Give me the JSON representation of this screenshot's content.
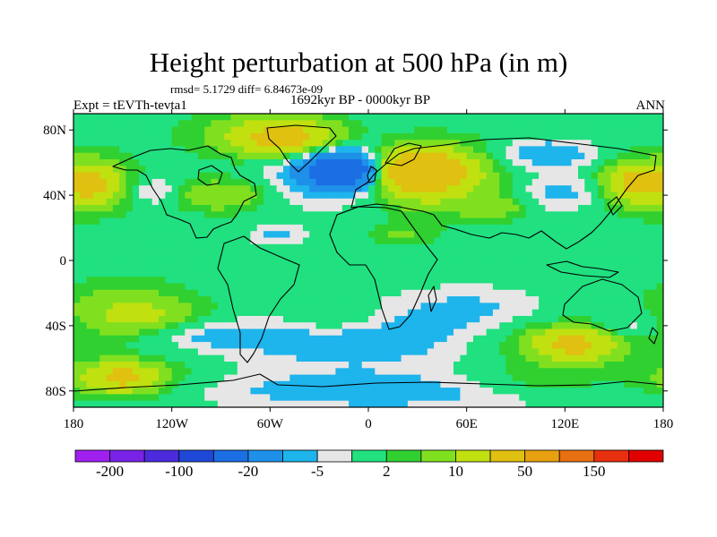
{
  "title": "Height perturbation at 500 hPa (in m)",
  "stats_line": "rmsd= 5.1729 diff= 6.84673e-09",
  "left_string": "Expt = tEVTh-tevta1",
  "center_string": "1692kyr BP - 0000kyr BP",
  "right_string": "ANN",
  "map": {
    "projection": "cylindrical equidistant",
    "lon_range": [
      -180,
      180
    ],
    "lat_range": [
      -90,
      90
    ],
    "lat_ticks": [
      "80N",
      "40N",
      "0",
      "40S",
      "80S"
    ],
    "lon_ticks": [
      "180",
      "120W",
      "60W",
      "0",
      "60E",
      "120E",
      "180"
    ],
    "coastlines": true
  },
  "colorbar": {
    "colors": [
      "#a020f0",
      "#7a22e6",
      "#4b2bdc",
      "#1f48d8",
      "#1c6ee4",
      "#1e90e8",
      "#1eb4ec",
      "#e6e6e6",
      "#20e080",
      "#30d030",
      "#80e020",
      "#c0e010",
      "#e0c010",
      "#e8a010",
      "#e87010",
      "#e83010",
      "#e00000"
    ],
    "labels": [
      "-200",
      "-100",
      "-20",
      "-5",
      "2",
      "10",
      "50",
      "150"
    ]
  },
  "chart_data": {
    "type": "heatmap",
    "title": "Height perturbation at 500 hPa (in m)",
    "subtitle": "1692kyr BP - 0000kyr BP",
    "variable": "500 hPa height perturbation",
    "units": "m",
    "contour_levels": [
      -200,
      -150,
      -100,
      -50,
      -20,
      -10,
      -5,
      -2,
      2,
      5,
      10,
      20,
      50,
      100,
      150,
      200
    ],
    "anomaly_features": [
      {
        "lon": 30,
        "lat": 55,
        "lon_radius": 25,
        "lat_radius": 12,
        "value": 40
      },
      {
        "lon": 40,
        "lat": 50,
        "lon_radius": 45,
        "lat_radius": 22,
        "value": 12
      },
      {
        "lon": -50,
        "lat": 75,
        "lon_radius": 30,
        "lat_radius": 10,
        "value": 22
      },
      {
        "lon": -60,
        "lat": 77,
        "lon_radius": 50,
        "lat_radius": 16,
        "value": 8
      },
      {
        "lon": -15,
        "lat": 55,
        "lon_radius": 22,
        "lat_radius": 10,
        "value": -35
      },
      {
        "lon": -20,
        "lat": 55,
        "lon_radius": 40,
        "lat_radius": 20,
        "value": -12
      },
      {
        "lon": -170,
        "lat": 47,
        "lon_radius": 14,
        "lat_radius": 10,
        "value": 18
      },
      {
        "lon": -165,
        "lat": 47,
        "lon_radius": 26,
        "lat_radius": 18,
        "value": 8
      },
      {
        "lon": 163,
        "lat": 47,
        "lon_radius": 16,
        "lat_radius": 10,
        "value": 18
      },
      {
        "lon": 160,
        "lat": 47,
        "lon_radius": 30,
        "lat_radius": 18,
        "value": 8
      },
      {
        "lon": -90,
        "lat": 40,
        "lon_radius": 30,
        "lat_radius": 10,
        "value": 10
      },
      {
        "lon": -130,
        "lat": 42,
        "lon_radius": 15,
        "lat_radius": 8,
        "value": -8
      },
      {
        "lon": 110,
        "lat": 65,
        "lon_radius": 30,
        "lat_radius": 9,
        "value": -10
      },
      {
        "lon": 120,
        "lat": 42,
        "lon_radius": 30,
        "lat_radius": 12,
        "value": -8
      },
      {
        "lon": 80,
        "lat": 32,
        "lon_radius": 20,
        "lat_radius": 7,
        "value": 6
      },
      {
        "lon": -55,
        "lat": 15,
        "lon_radius": 18,
        "lat_radius": 6,
        "value": -6
      },
      {
        "lon": 20,
        "lat": 15,
        "lon_radius": 18,
        "lat_radius": 6,
        "value": 5
      },
      {
        "lon": -150,
        "lat": -20,
        "lon_radius": 40,
        "lat_radius": 12,
        "value": 4
      },
      {
        "lon": -140,
        "lat": -35,
        "lon_radius": 40,
        "lat_radius": 12,
        "value": 12
      },
      {
        "lon": -20,
        "lat": -35,
        "lon_radius": 25,
        "lat_radius": 10,
        "value": 5
      },
      {
        "lon": 60,
        "lat": -30,
        "lon_radius": 50,
        "lat_radius": 14,
        "value": -6
      },
      {
        "lon": -10,
        "lat": -50,
        "lon_radius": 80,
        "lat_radius": 16,
        "value": -8
      },
      {
        "lon": -100,
        "lat": -45,
        "lon_radius": 35,
        "lat_radius": 9,
        "value": -6
      },
      {
        "lon": 160,
        "lat": -40,
        "lon_radius": 20,
        "lat_radius": 8,
        "value": -6
      },
      {
        "lon": 120,
        "lat": -50,
        "lon_radius": 50,
        "lat_radius": 15,
        "value": 8
      },
      {
        "lon": 125,
        "lat": -52,
        "lon_radius": 22,
        "lat_radius": 9,
        "value": 18
      },
      {
        "lon": -150,
        "lat": -72,
        "lon_radius": 45,
        "lat_radius": 14,
        "value": 8
      },
      {
        "lon": -150,
        "lat": -72,
        "lon_radius": 20,
        "lat_radius": 8,
        "value": 18
      },
      {
        "lon": 10,
        "lat": -80,
        "lon_radius": 120,
        "lat_radius": 12,
        "value": -8
      },
      {
        "lon": 100,
        "lat": -75,
        "lon_radius": 50,
        "lat_radius": 10,
        "value": 6
      }
    ]
  }
}
